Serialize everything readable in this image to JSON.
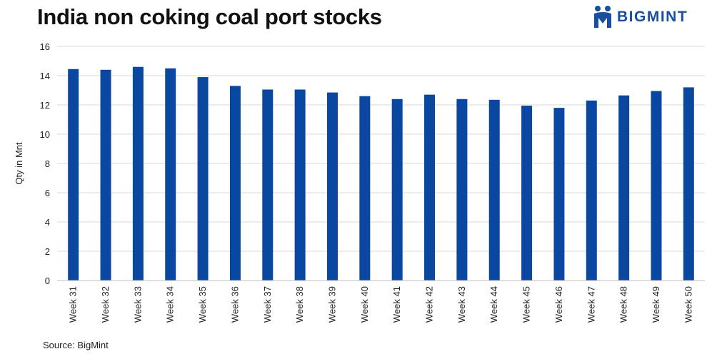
{
  "brand": {
    "name": "BIGMINT",
    "color": "#1a4fa0"
  },
  "source": "Source: BigMint",
  "chart_data": {
    "type": "bar",
    "title": "India non coking coal port stocks",
    "xlabel": "",
    "ylabel": "Qty in Mnt",
    "ylim": [
      0,
      16
    ],
    "yticks": [
      0,
      2,
      4,
      6,
      8,
      10,
      12,
      14,
      16
    ],
    "grid": true,
    "bar_color": "#0a47a1",
    "categories": [
      "Week 31",
      "Week 32",
      "Week 33",
      "Week 34",
      "Week 35",
      "Week 36",
      "Week 37",
      "Week 38",
      "Week 39",
      "Week 40",
      "Week 41",
      "Week 42",
      "Week 43",
      "Week 44",
      "Week 45",
      "Week 46",
      "Week 47",
      "Week 48",
      "Week 49",
      "Week 50"
    ],
    "values": [
      14.45,
      14.4,
      14.6,
      14.5,
      13.9,
      13.3,
      13.05,
      13.05,
      12.85,
      12.6,
      12.4,
      12.7,
      12.4,
      12.35,
      11.95,
      11.8,
      12.3,
      12.65,
      12.95,
      13.2
    ]
  }
}
